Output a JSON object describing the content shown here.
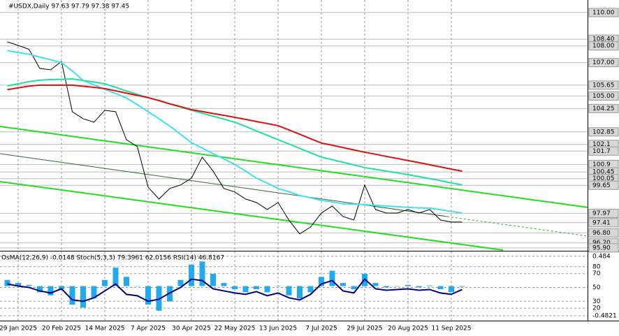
{
  "chart_data": [
    {
      "type": "line",
      "title": "#USDX,Daily  97.63 97.79 97.38 97.45",
      "categories": [
        null,
        "29 Jan 2025",
        null,
        null,
        null,
        "20 Feb 2025",
        null,
        null,
        null,
        "14 Mar 2025",
        null,
        null,
        null,
        "7 Apr 2025",
        null,
        null,
        null,
        "30 Apr 2025",
        null,
        null,
        null,
        "22 May 2025",
        null,
        null,
        null,
        "13 Jun 2025",
        null,
        null,
        null,
        "7 Jul 2025",
        null,
        null,
        null,
        "29 Jul 2025",
        null,
        null,
        null,
        "20 Aug 2025",
        null,
        null,
        null,
        "11 Sep 2025",
        null
      ],
      "series": [
        {
          "color": "#000000",
          "values": [
            108.24,
            108.03,
            107.8,
            106.65,
            106.57,
            107.07,
            104.06,
            103.64,
            103.43,
            104.14,
            104.06,
            102.38,
            101.97,
            99.54,
            98.83,
            99.46,
            99.67,
            100.08,
            101.34,
            100.5,
            99.46,
            99.25,
            98.83,
            98.62,
            98.2,
            98.62,
            97.57,
            96.74,
            97.15,
            97.99,
            98.41,
            97.78,
            97.57,
            99.67,
            98.2,
            97.99,
            97.99,
            98.2,
            97.99,
            98.2,
            97.57,
            97.45,
            97.45
          ]
        },
        {
          "color": "#40e0f0",
          "values": [
            107.72,
            107.6,
            107.5,
            107.33,
            107.17,
            107.0,
            106.5,
            105.93,
            105.67,
            105.4,
            105.15,
            104.88,
            104.48,
            104.06,
            103.64,
            103.2,
            102.7,
            102.2,
            101.88,
            101.55,
            101.23,
            100.9,
            100.5,
            100.08,
            99.78,
            99.46,
            99.26,
            99.04,
            98.9,
            98.75,
            98.65,
            98.54,
            98.52,
            98.49,
            98.45,
            98.41,
            98.37,
            98.33,
            98.3,
            98.28,
            98.19,
            98.09,
            97.99
          ]
        },
        {
          "color": "#20e0a0",
          "values": [
            105.6,
            105.73,
            105.86,
            105.95,
            105.98,
            106.0,
            106.02,
            105.93,
            105.84,
            105.73,
            105.52,
            105.3,
            105.1,
            104.9,
            104.72,
            104.53,
            104.34,
            104.14,
            103.97,
            103.79,
            103.61,
            103.43,
            103.18,
            102.9,
            102.65,
            102.38,
            102.13,
            101.86,
            101.6,
            101.34,
            101.19,
            101.03,
            100.87,
            100.71,
            100.61,
            100.5,
            100.4,
            100.29,
            100.17,
            100.05,
            99.93,
            99.79,
            99.67
          ]
        },
        {
          "color": "#e01010",
          "values": [
            105.38,
            105.49,
            105.59,
            105.65,
            105.65,
            105.65,
            105.65,
            105.58,
            105.52,
            105.44,
            105.31,
            105.17,
            105.04,
            104.9,
            104.73,
            104.53,
            104.36,
            104.18,
            104.07,
            103.95,
            103.84,
            103.72,
            103.6,
            103.47,
            103.35,
            103.22,
            102.97,
            102.71,
            102.44,
            102.18,
            102.05,
            101.91,
            101.77,
            101.63,
            101.51,
            101.38,
            101.26,
            101.13,
            101.01,
            100.88,
            100.75,
            100.62,
            100.5
          ]
        }
      ],
      "ylim": [
        95.77,
        110.75
      ],
      "yticks": [
        {
          "value": 110,
          "label": "110.00"
        },
        {
          "value": 108.4,
          "label": "108.40"
        },
        {
          "value": 108,
          "label": "108.00"
        },
        {
          "value": 107,
          "label": "107.00"
        },
        105.65,
        {
          "value": 105,
          "label": "105.00"
        },
        104.25,
        102.85,
        102.1,
        101.7,
        100.9,
        100.45,
        100.05,
        99.65,
        97.97,
        97.41,
        {
          "value": 96.8,
          "label": "96.80"
        },
        {
          "value": 96.2,
          "label": "96.20"
        },
        {
          "value": 95.9,
          "label": "95.90"
        }
      ],
      "grid": true
    },
    {
      "type": "line",
      "title": "OsMA(12,26,9) -0.0148 Stoch(5,3,3) 79.3961 62.0156 RSI(14) 46.8167",
      "series": [
        {
          "color": "#22aaee",
          "axis": "y2",
          "type": "bar",
          "values": [
            0.1,
            0.05,
            0.02,
            -0.1,
            -0.15,
            -0.05,
            -0.3,
            -0.35,
            -0.2,
            0.1,
            0.3,
            0.15,
            0,
            -0.3,
            -0.4,
            -0.25,
            0.1,
            0.35,
            0.4,
            0.2,
            0.05,
            -0.05,
            -0.1,
            -0.05,
            -0.1,
            0,
            -0.15,
            -0.2,
            -0.1,
            0.15,
            0.25,
            0.05,
            -0.05,
            0.2,
            0.05,
            -0.02,
            0,
            0.02,
            -0.02,
            0.01,
            -0.05,
            -0.1,
            -0.01
          ]
        },
        {
          "color": "#000080",
          "values": [
            55,
            52,
            50,
            45,
            42,
            48,
            32,
            30,
            35,
            45,
            55,
            40,
            38,
            30,
            33,
            42,
            50,
            62,
            60,
            48,
            45,
            42,
            40,
            44,
            38,
            42,
            35,
            32,
            40,
            55,
            60,
            45,
            42,
            62,
            48,
            46,
            47,
            48,
            46,
            47,
            42,
            40,
            47
          ]
        }
      ],
      "ylim": [
        3,
        100
      ],
      "yticks": [
        80,
        70,
        50,
        30,
        20
      ],
      "y2lim": [
        -0.55,
        0.54
      ],
      "y2ticks": [
        0.484,
        -0.4821
      ]
    }
  ]
}
